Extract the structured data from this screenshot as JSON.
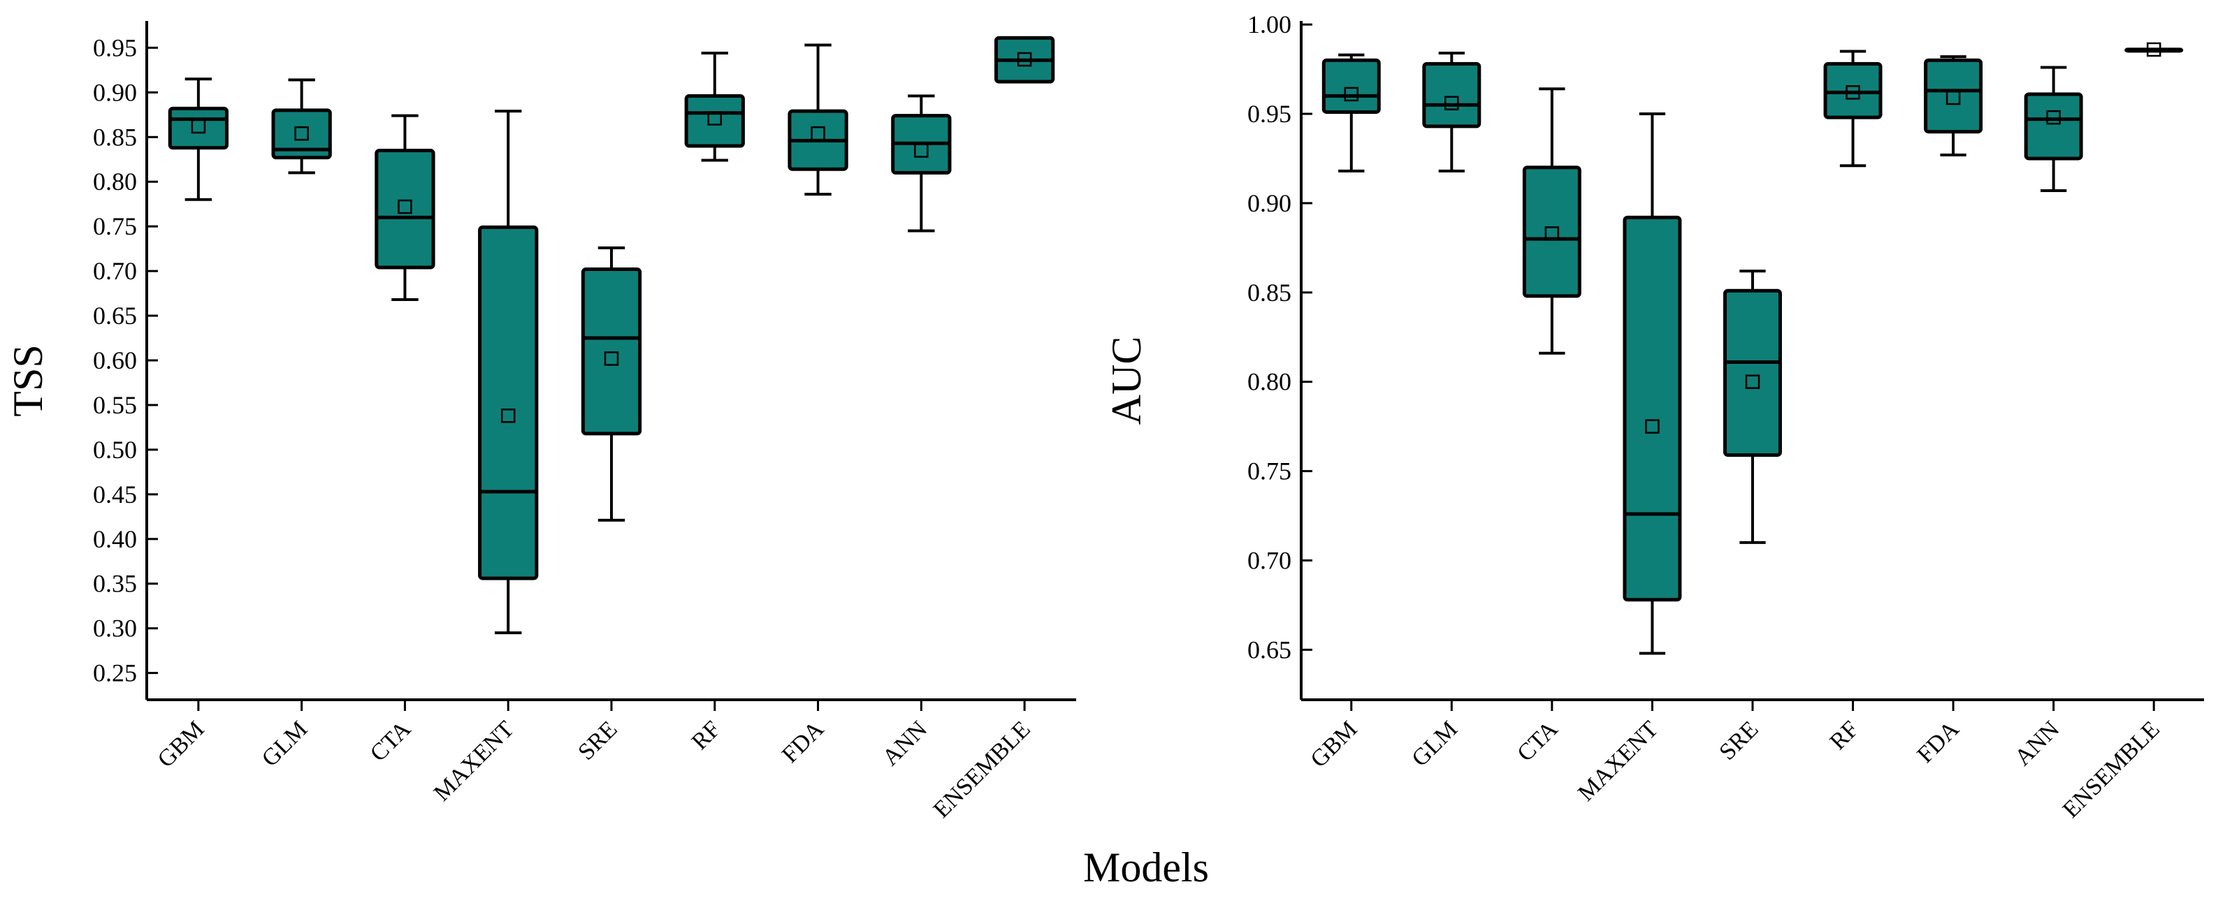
{
  "colors": {
    "box_fill": "#0e7f77",
    "line": "#000000",
    "background": "#ffffff"
  },
  "xlabel": "Models",
  "chart_data": [
    {
      "type": "box",
      "ylabel": "TSS",
      "ylim": [
        0.22,
        0.98
      ],
      "yticks": [
        "0.25",
        "0.30",
        "0.35",
        "0.40",
        "0.45",
        "0.50",
        "0.55",
        "0.60",
        "0.65",
        "0.70",
        "0.75",
        "0.80",
        "0.85",
        "0.90",
        "0.95"
      ],
      "categories": [
        "GBM",
        "GLM",
        "CTA",
        "MAXENT",
        "SRE",
        "RF",
        "FDA",
        "ANN",
        "ENSEMBLE"
      ],
      "boxes": [
        {
          "min": 0.78,
          "q1": 0.838,
          "median": 0.87,
          "q3": 0.882,
          "max": 0.915,
          "mean": 0.862
        },
        {
          "min": 0.81,
          "q1": 0.827,
          "median": 0.836,
          "q3": 0.88,
          "max": 0.914,
          "mean": 0.854
        },
        {
          "min": 0.668,
          "q1": 0.704,
          "median": 0.76,
          "q3": 0.835,
          "max": 0.874,
          "mean": 0.772
        },
        {
          "min": 0.295,
          "q1": 0.356,
          "median": 0.453,
          "q3": 0.749,
          "max": 0.879,
          "mean": 0.538
        },
        {
          "min": 0.421,
          "q1": 0.518,
          "median": 0.625,
          "q3": 0.702,
          "max": 0.726,
          "mean": 0.602
        },
        {
          "min": 0.824,
          "q1": 0.84,
          "median": 0.877,
          "q3": 0.896,
          "max": 0.944,
          "mean": 0.871
        },
        {
          "min": 0.786,
          "q1": 0.814,
          "median": 0.846,
          "q3": 0.879,
          "max": 0.953,
          "mean": 0.854
        },
        {
          "min": 0.745,
          "q1": 0.81,
          "median": 0.843,
          "q3": 0.874,
          "max": 0.896,
          "mean": 0.835
        },
        {
          "min": 0.912,
          "q1": 0.912,
          "median": 0.936,
          "q3": 0.961,
          "max": 0.961,
          "mean": 0.937
        }
      ]
    },
    {
      "type": "box",
      "ylabel": "AUC",
      "ylim": [
        0.622,
        1.002
      ],
      "yticks": [
        "0.65",
        "0.70",
        "0.75",
        "0.80",
        "0.85",
        "0.90",
        "0.95",
        "1.00"
      ],
      "categories": [
        "GBM",
        "GLM",
        "CTA",
        "MAXENT",
        "SRE",
        "RF",
        "FDA",
        "ANN",
        "ENSEMBLE"
      ],
      "boxes": [
        {
          "min": 0.918,
          "q1": 0.951,
          "median": 0.96,
          "q3": 0.98,
          "max": 0.983,
          "mean": 0.961
        },
        {
          "min": 0.918,
          "q1": 0.943,
          "median": 0.955,
          "q3": 0.978,
          "max": 0.984,
          "mean": 0.956
        },
        {
          "min": 0.816,
          "q1": 0.848,
          "median": 0.88,
          "q3": 0.92,
          "max": 0.964,
          "mean": 0.883
        },
        {
          "min": 0.648,
          "q1": 0.678,
          "median": 0.726,
          "q3": 0.892,
          "max": 0.95,
          "mean": 0.775
        },
        {
          "min": 0.71,
          "q1": 0.759,
          "median": 0.811,
          "q3": 0.851,
          "max": 0.862,
          "mean": 0.8
        },
        {
          "min": 0.921,
          "q1": 0.948,
          "median": 0.962,
          "q3": 0.978,
          "max": 0.985,
          "mean": 0.962
        },
        {
          "min": 0.927,
          "q1": 0.94,
          "median": 0.963,
          "q3": 0.98,
          "max": 0.982,
          "mean": 0.959
        },
        {
          "min": 0.907,
          "q1": 0.925,
          "median": 0.947,
          "q3": 0.961,
          "max": 0.976,
          "mean": 0.948
        },
        {
          "min": 0.986,
          "q1": 0.986,
          "median": 0.986,
          "q3": 0.986,
          "max": 0.986,
          "mean": 0.986
        }
      ]
    }
  ]
}
